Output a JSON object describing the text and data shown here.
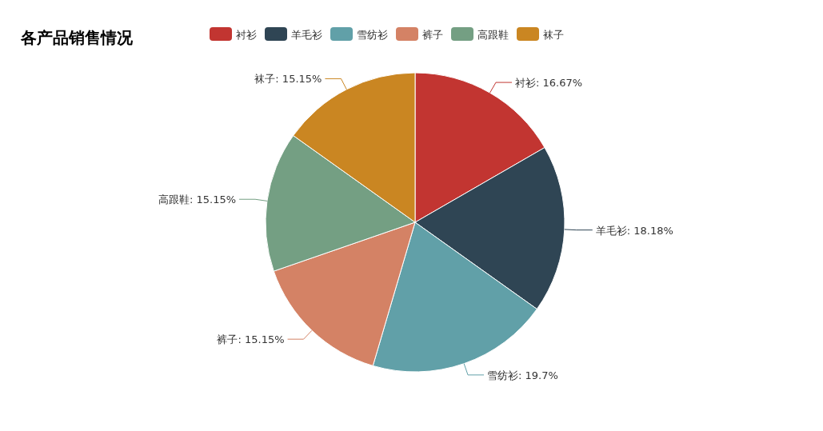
{
  "chart_data": {
    "type": "pie",
    "title": "各产品销售情况",
    "categories": [
      "衬衫",
      "羊毛衫",
      "雪纺衫",
      "裤子",
      "高跟鞋",
      "袜子"
    ],
    "values": [
      16.67,
      18.18,
      19.7,
      15.15,
      15.15,
      15.15
    ],
    "colors": [
      "#c23531",
      "#2f4554",
      "#61a0a8",
      "#d48265",
      "#749f83",
      "#ca8622"
    ],
    "value_labels": [
      "衬衫: 16.67%",
      "羊毛衫: 18.18%",
      "雪纺衫: 19.7%",
      "裤子: 15.15%",
      "高跟鞋: 15.15%",
      "袜子: 15.15%"
    ],
    "legend": "top"
  }
}
